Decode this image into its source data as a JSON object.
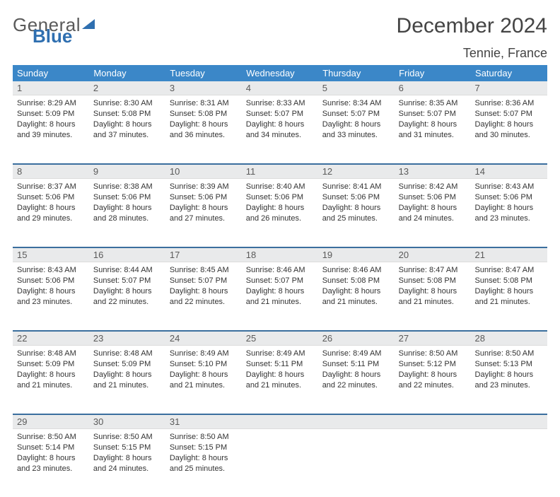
{
  "logo": {
    "text1": "General",
    "text2": "Blue",
    "accent_color": "#2f6fb0"
  },
  "title": "December 2024",
  "location": "Tennie, France",
  "weekdays": [
    "Sunday",
    "Monday",
    "Tuesday",
    "Wednesday",
    "Thursday",
    "Friday",
    "Saturday"
  ],
  "header_bg": "#3b87c8",
  "row_border": "#3b6f9e",
  "daynum_bg": "#e9eaeb",
  "weeks": [
    {
      "days": [
        {
          "num": "1",
          "sunrise": "Sunrise: 8:29 AM",
          "sunset": "Sunset: 5:09 PM",
          "daylight": "Daylight: 8 hours and 39 minutes."
        },
        {
          "num": "2",
          "sunrise": "Sunrise: 8:30 AM",
          "sunset": "Sunset: 5:08 PM",
          "daylight": "Daylight: 8 hours and 37 minutes."
        },
        {
          "num": "3",
          "sunrise": "Sunrise: 8:31 AM",
          "sunset": "Sunset: 5:08 PM",
          "daylight": "Daylight: 8 hours and 36 minutes."
        },
        {
          "num": "4",
          "sunrise": "Sunrise: 8:33 AM",
          "sunset": "Sunset: 5:07 PM",
          "daylight": "Daylight: 8 hours and 34 minutes."
        },
        {
          "num": "5",
          "sunrise": "Sunrise: 8:34 AM",
          "sunset": "Sunset: 5:07 PM",
          "daylight": "Daylight: 8 hours and 33 minutes."
        },
        {
          "num": "6",
          "sunrise": "Sunrise: 8:35 AM",
          "sunset": "Sunset: 5:07 PM",
          "daylight": "Daylight: 8 hours and 31 minutes."
        },
        {
          "num": "7",
          "sunrise": "Sunrise: 8:36 AM",
          "sunset": "Sunset: 5:07 PM",
          "daylight": "Daylight: 8 hours and 30 minutes."
        }
      ]
    },
    {
      "days": [
        {
          "num": "8",
          "sunrise": "Sunrise: 8:37 AM",
          "sunset": "Sunset: 5:06 PM",
          "daylight": "Daylight: 8 hours and 29 minutes."
        },
        {
          "num": "9",
          "sunrise": "Sunrise: 8:38 AM",
          "sunset": "Sunset: 5:06 PM",
          "daylight": "Daylight: 8 hours and 28 minutes."
        },
        {
          "num": "10",
          "sunrise": "Sunrise: 8:39 AM",
          "sunset": "Sunset: 5:06 PM",
          "daylight": "Daylight: 8 hours and 27 minutes."
        },
        {
          "num": "11",
          "sunrise": "Sunrise: 8:40 AM",
          "sunset": "Sunset: 5:06 PM",
          "daylight": "Daylight: 8 hours and 26 minutes."
        },
        {
          "num": "12",
          "sunrise": "Sunrise: 8:41 AM",
          "sunset": "Sunset: 5:06 PM",
          "daylight": "Daylight: 8 hours and 25 minutes."
        },
        {
          "num": "13",
          "sunrise": "Sunrise: 8:42 AM",
          "sunset": "Sunset: 5:06 PM",
          "daylight": "Daylight: 8 hours and 24 minutes."
        },
        {
          "num": "14",
          "sunrise": "Sunrise: 8:43 AM",
          "sunset": "Sunset: 5:06 PM",
          "daylight": "Daylight: 8 hours and 23 minutes."
        }
      ]
    },
    {
      "days": [
        {
          "num": "15",
          "sunrise": "Sunrise: 8:43 AM",
          "sunset": "Sunset: 5:06 PM",
          "daylight": "Daylight: 8 hours and 23 minutes."
        },
        {
          "num": "16",
          "sunrise": "Sunrise: 8:44 AM",
          "sunset": "Sunset: 5:07 PM",
          "daylight": "Daylight: 8 hours and 22 minutes."
        },
        {
          "num": "17",
          "sunrise": "Sunrise: 8:45 AM",
          "sunset": "Sunset: 5:07 PM",
          "daylight": "Daylight: 8 hours and 22 minutes."
        },
        {
          "num": "18",
          "sunrise": "Sunrise: 8:46 AM",
          "sunset": "Sunset: 5:07 PM",
          "daylight": "Daylight: 8 hours and 21 minutes."
        },
        {
          "num": "19",
          "sunrise": "Sunrise: 8:46 AM",
          "sunset": "Sunset: 5:08 PM",
          "daylight": "Daylight: 8 hours and 21 minutes."
        },
        {
          "num": "20",
          "sunrise": "Sunrise: 8:47 AM",
          "sunset": "Sunset: 5:08 PM",
          "daylight": "Daylight: 8 hours and 21 minutes."
        },
        {
          "num": "21",
          "sunrise": "Sunrise: 8:47 AM",
          "sunset": "Sunset: 5:08 PM",
          "daylight": "Daylight: 8 hours and 21 minutes."
        }
      ]
    },
    {
      "days": [
        {
          "num": "22",
          "sunrise": "Sunrise: 8:48 AM",
          "sunset": "Sunset: 5:09 PM",
          "daylight": "Daylight: 8 hours and 21 minutes."
        },
        {
          "num": "23",
          "sunrise": "Sunrise: 8:48 AM",
          "sunset": "Sunset: 5:09 PM",
          "daylight": "Daylight: 8 hours and 21 minutes."
        },
        {
          "num": "24",
          "sunrise": "Sunrise: 8:49 AM",
          "sunset": "Sunset: 5:10 PM",
          "daylight": "Daylight: 8 hours and 21 minutes."
        },
        {
          "num": "25",
          "sunrise": "Sunrise: 8:49 AM",
          "sunset": "Sunset: 5:11 PM",
          "daylight": "Daylight: 8 hours and 21 minutes."
        },
        {
          "num": "26",
          "sunrise": "Sunrise: 8:49 AM",
          "sunset": "Sunset: 5:11 PM",
          "daylight": "Daylight: 8 hours and 22 minutes."
        },
        {
          "num": "27",
          "sunrise": "Sunrise: 8:50 AM",
          "sunset": "Sunset: 5:12 PM",
          "daylight": "Daylight: 8 hours and 22 minutes."
        },
        {
          "num": "28",
          "sunrise": "Sunrise: 8:50 AM",
          "sunset": "Sunset: 5:13 PM",
          "daylight": "Daylight: 8 hours and 23 minutes."
        }
      ]
    },
    {
      "days": [
        {
          "num": "29",
          "sunrise": "Sunrise: 8:50 AM",
          "sunset": "Sunset: 5:14 PM",
          "daylight": "Daylight: 8 hours and 23 minutes."
        },
        {
          "num": "30",
          "sunrise": "Sunrise: 8:50 AM",
          "sunset": "Sunset: 5:15 PM",
          "daylight": "Daylight: 8 hours and 24 minutes."
        },
        {
          "num": "31",
          "sunrise": "Sunrise: 8:50 AM",
          "sunset": "Sunset: 5:15 PM",
          "daylight": "Daylight: 8 hours and 25 minutes."
        },
        null,
        null,
        null,
        null
      ]
    }
  ]
}
